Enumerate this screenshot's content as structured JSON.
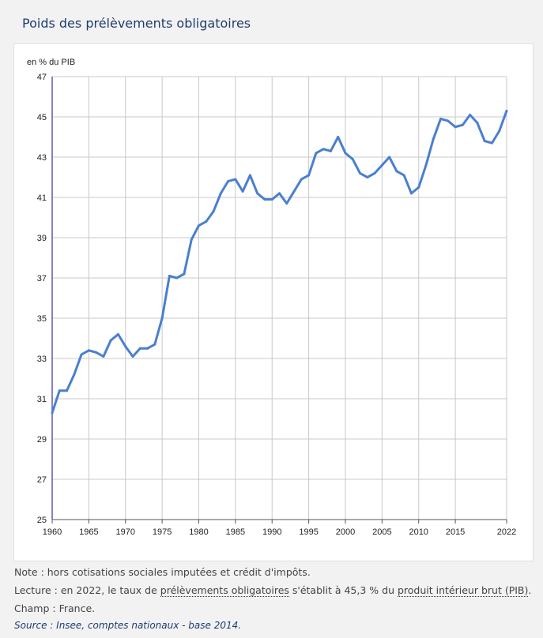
{
  "title": "Poids des prélèvements obligatoires",
  "notes": {
    "note": "Note : hors cotisations sociales imputées et crédit d'impôts.",
    "lecture_1": "Lecture : en 2022, le taux de ",
    "lecture_link1": "prélèvements obligatoires",
    "lecture_2": " s'établit à 45,3 % du ",
    "lecture_link2": "produit intérieur brut (PIB)",
    "lecture_3": ".",
    "champ": "Champ : France.",
    "source": "Source : Insee, comptes nationaux - base 2014."
  },
  "chart_data": {
    "type": "line",
    "title": "Poids des prélèvements obligatoires",
    "ylabel": "en % du PIB",
    "xlabel": "",
    "ylim": [
      25,
      47
    ],
    "xlim": [
      1960,
      2022
    ],
    "yticks": [
      25,
      27,
      29,
      31,
      33,
      35,
      37,
      39,
      41,
      43,
      45,
      47
    ],
    "xticks": [
      1960,
      1965,
      1970,
      1975,
      1980,
      1985,
      1990,
      1995,
      2000,
      2005,
      2010,
      2015,
      2022
    ],
    "grid": true,
    "color": "#4a7fd0",
    "x": [
      1960,
      1961,
      1962,
      1963,
      1964,
      1965,
      1966,
      1967,
      1968,
      1969,
      1970,
      1971,
      1972,
      1973,
      1974,
      1975,
      1976,
      1977,
      1978,
      1979,
      1980,
      1981,
      1982,
      1983,
      1984,
      1985,
      1986,
      1987,
      1988,
      1989,
      1990,
      1991,
      1992,
      1993,
      1994,
      1995,
      1996,
      1997,
      1998,
      1999,
      2000,
      2001,
      2002,
      2003,
      2004,
      2005,
      2006,
      2007,
      2008,
      2009,
      2010,
      2011,
      2012,
      2013,
      2014,
      2015,
      2016,
      2017,
      2018,
      2019,
      2020,
      2021,
      2022
    ],
    "values": [
      30.3,
      31.4,
      31.4,
      32.2,
      33.2,
      33.4,
      33.3,
      33.1,
      33.9,
      34.2,
      33.6,
      33.1,
      33.5,
      33.5,
      33.7,
      35.0,
      37.1,
      37.0,
      37.2,
      38.9,
      39.6,
      39.8,
      40.3,
      41.2,
      41.8,
      41.9,
      41.3,
      42.1,
      41.2,
      40.9,
      40.9,
      41.2,
      40.7,
      41.3,
      41.9,
      42.1,
      43.2,
      43.4,
      43.3,
      44.0,
      43.2,
      42.9,
      42.2,
      42.0,
      42.2,
      42.6,
      43.0,
      42.3,
      42.1,
      41.2,
      41.5,
      42.6,
      43.9,
      44.9,
      44.8,
      44.5,
      44.6,
      45.1,
      44.7,
      43.8,
      43.7,
      44.3,
      45.3
    ]
  }
}
